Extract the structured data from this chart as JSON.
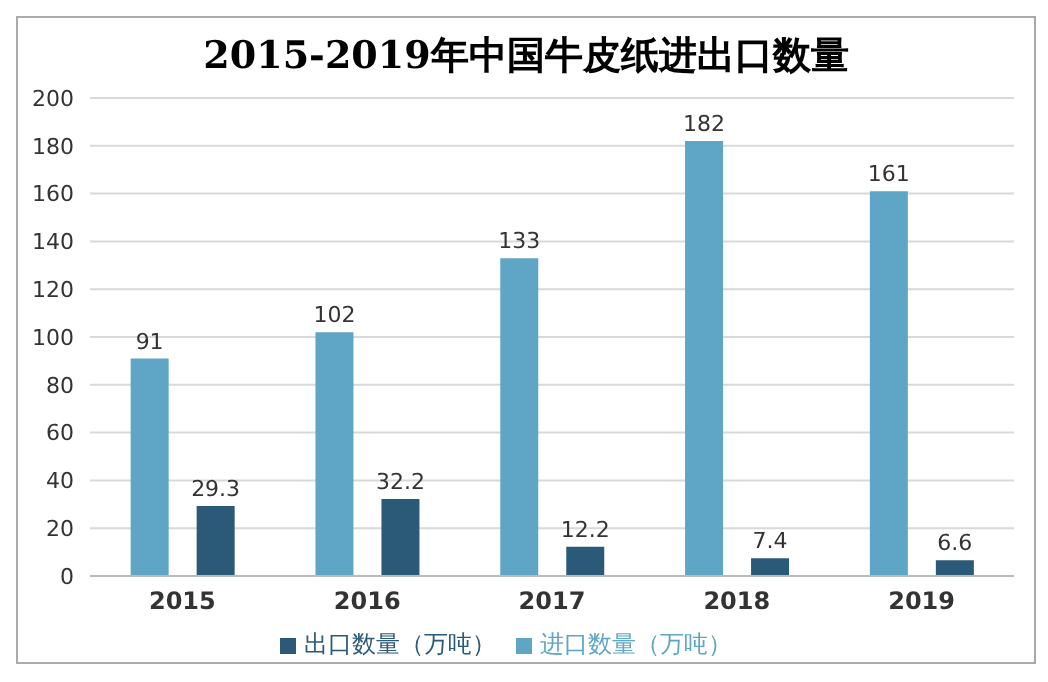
{
  "chart_data": {
    "type": "bar",
    "title": "2015-2019年中国牛皮纸进出口数量",
    "categories": [
      "2015",
      "2016",
      "2017",
      "2018",
      "2019"
    ],
    "series": [
      {
        "name": "进口数量（万吨）",
        "color": "#5fa5c5",
        "values": [
          91,
          102,
          133,
          182,
          161
        ]
      },
      {
        "name": "出口数量（万吨）",
        "color": "#2b5a78",
        "values": [
          29.3,
          32.2,
          12.2,
          7.4,
          6.6
        ]
      }
    ],
    "ylim": [
      0,
      200
    ],
    "yticks": [
      0,
      20,
      40,
      60,
      80,
      100,
      120,
      140,
      160,
      180,
      200
    ],
    "grid": "y",
    "legend": "bottom",
    "data_labels": true
  }
}
